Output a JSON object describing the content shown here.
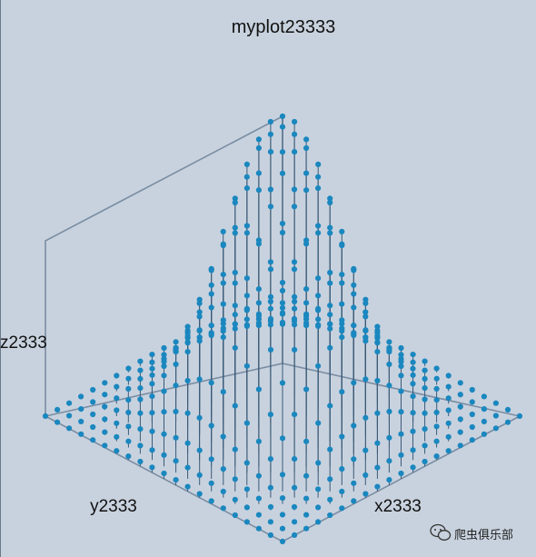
{
  "chart_data": {
    "type": "3d-stem",
    "title": "myplot23333",
    "xlabel": "x2333",
    "ylabel": "y2333",
    "zlabel": "z2333",
    "function": "z = exp(-(x^2 + y^2))",
    "x": {
      "min": -2,
      "max": 2,
      "count": 21
    },
    "y": {
      "min": -2,
      "max": 2,
      "count": 21
    },
    "zlim": [
      0,
      1
    ],
    "marker_color": "#1a87bf",
    "stem_color": "#3a5a78"
  },
  "watermark": {
    "text": "爬虫俱乐部",
    "icon": "wechat-icon"
  },
  "colors": {
    "background": "#c8d2de",
    "axis_frame": "#7a8da3"
  }
}
